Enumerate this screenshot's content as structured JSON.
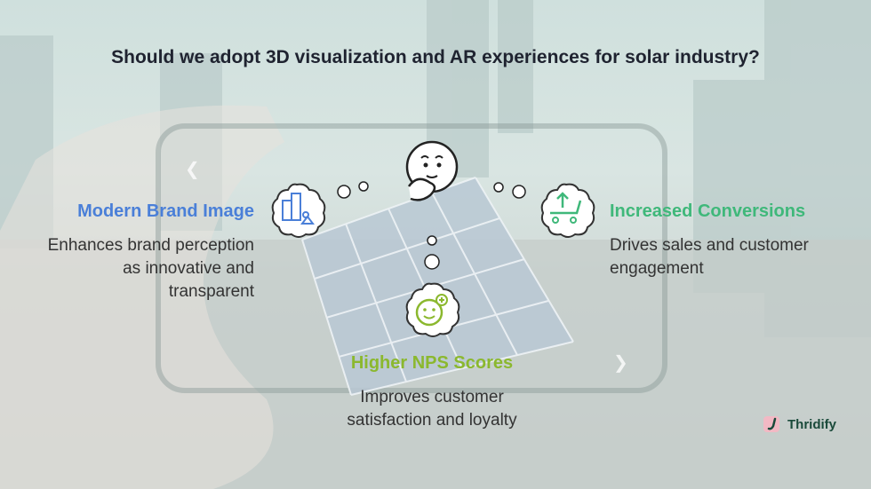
{
  "title": "Should we adopt 3D visualization and AR experiences for solar industry?",
  "items": [
    {
      "heading": "Modern Brand Image",
      "description_lines": [
        "Enhances brand perception",
        "as innovative and",
        "transparent"
      ],
      "color": "#4a7fd8",
      "icon": "buildings-icon"
    },
    {
      "heading": "Increased Conversions",
      "description_lines": [
        "Drives sales and customer",
        "engagement"
      ],
      "color": "#3fb87a",
      "icon": "shopping-cart-up-icon"
    },
    {
      "heading": "Higher NPS Scores",
      "description_lines": [
        "Improves customer",
        "satisfaction and loyalty"
      ],
      "color": "#8bb82e",
      "icon": "smiley-plus-icon"
    }
  ],
  "center_icon": "thinking-face-icon",
  "brand": {
    "name": "Thridify",
    "color": "#1a4a3a"
  }
}
